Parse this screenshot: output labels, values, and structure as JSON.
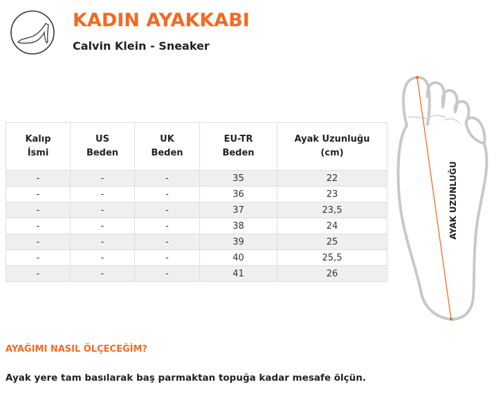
{
  "header": {
    "title": "KADIN AYAKKABI",
    "subtitle": "Calvin Klein - Sneaker",
    "icon": "high-heel-shoe-icon"
  },
  "table": {
    "headers": [
      [
        "Kalıp",
        "İsmi"
      ],
      [
        "US",
        "Beden"
      ],
      [
        "UK",
        "Beden"
      ],
      [
        "EU-TR",
        "Beden"
      ],
      [
        "Ayak Uzunluğu",
        "(cm)"
      ]
    ],
    "rows": [
      [
        "-",
        "-",
        "-",
        "35",
        "22"
      ],
      [
        "-",
        "-",
        "-",
        "36",
        "23"
      ],
      [
        "-",
        "-",
        "-",
        "37",
        "23,5"
      ],
      [
        "-",
        "-",
        "-",
        "38",
        "24"
      ],
      [
        "-",
        "-",
        "-",
        "39",
        "25"
      ],
      [
        "-",
        "-",
        "-",
        "40",
        "25,5"
      ],
      [
        "-",
        "-",
        "-",
        "41",
        "26"
      ]
    ]
  },
  "diagram": {
    "label": "AYAK UZUNLUĞU",
    "accent": "#f26a22"
  },
  "info": {
    "question": "AYAĞIMI NASIL ÖLÇECEĞİM?",
    "answer": "Ayak yere tam basılarak baş parmaktan topuğa kadar mesafe ölçün."
  }
}
